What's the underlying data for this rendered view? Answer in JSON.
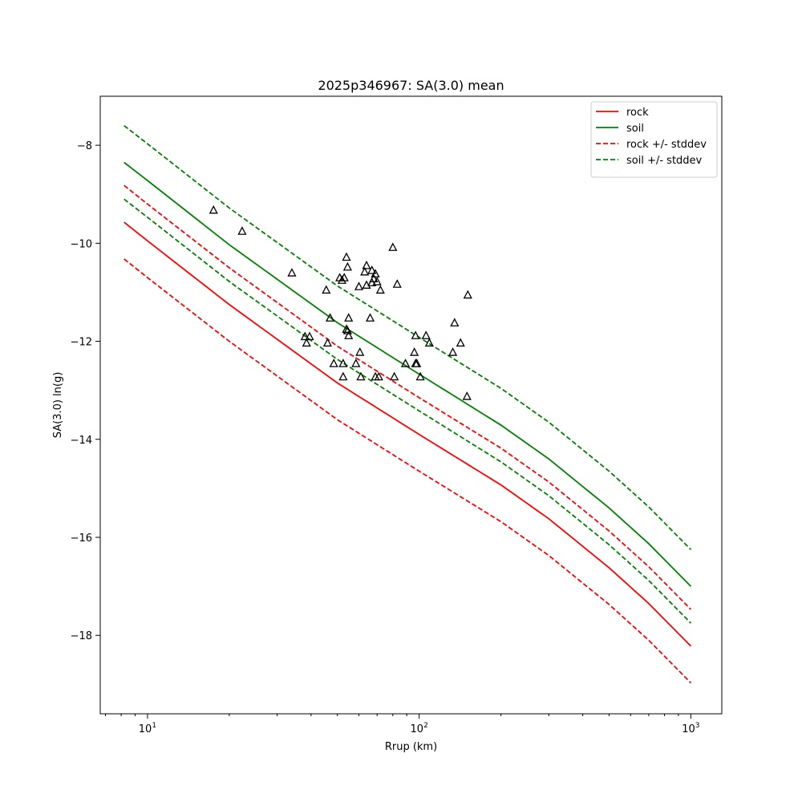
{
  "chart_data": {
    "type": "line",
    "title": "2025p346967: SA(3.0) mean",
    "xlabel": "Rrup (km)",
    "ylabel": "SA(3.0) ln(g)",
    "xscale": "log",
    "xlim": [
      6.7,
      1300
    ],
    "ylim": [
      -19.6,
      -7.0
    ],
    "yticks": [
      -8,
      -10,
      -12,
      -14,
      -16,
      -18
    ],
    "xticks": [
      {
        "value": 10,
        "base": "10",
        "exp": "1"
      },
      {
        "value": 100,
        "base": "10",
        "exp": "2"
      },
      {
        "value": 1000,
        "base": "10",
        "exp": "3"
      }
    ],
    "grid": false,
    "legend_position": "top-right",
    "series": [
      {
        "name": "rock",
        "color": "#ff0000",
        "style": "solid",
        "x": [
          8.2,
          10,
          20,
          50,
          100,
          200,
          300,
          500,
          700,
          1000
        ],
        "y": [
          -9.57,
          -9.95,
          -11.25,
          -12.85,
          -13.9,
          -14.93,
          -15.62,
          -16.62,
          -17.35,
          -18.22
        ]
      },
      {
        "name": "soil",
        "color": "#008000",
        "style": "solid",
        "x": [
          8.2,
          10,
          20,
          50,
          100,
          200,
          300,
          500,
          700,
          1000
        ],
        "y": [
          -8.35,
          -8.72,
          -10.03,
          -11.62,
          -12.67,
          -13.71,
          -14.4,
          -15.4,
          -16.13,
          -17.0
        ]
      },
      {
        "name": "rock +/- stddev",
        "color": "#ff0000",
        "style": "dashed",
        "x": [
          8.2,
          10,
          20,
          50,
          100,
          200,
          300,
          500,
          700,
          1000
        ],
        "y": [
          -8.82,
          -9.2,
          -10.5,
          -12.1,
          -13.15,
          -14.18,
          -14.87,
          -15.87,
          -16.6,
          -17.47
        ]
      },
      {
        "name": "",
        "color": "#ff0000",
        "style": "dashed",
        "x": [
          8.2,
          10,
          20,
          50,
          100,
          200,
          300,
          500,
          700,
          1000
        ],
        "y": [
          -10.32,
          -10.7,
          -12.0,
          -13.6,
          -14.65,
          -15.68,
          -16.37,
          -17.37,
          -18.1,
          -18.97
        ]
      },
      {
        "name": "soil +/- stddev",
        "color": "#008000",
        "style": "dashed",
        "x": [
          8.2,
          10,
          20,
          50,
          100,
          200,
          300,
          500,
          700,
          1000
        ],
        "y": [
          -7.6,
          -7.97,
          -9.28,
          -10.87,
          -11.92,
          -12.96,
          -13.65,
          -14.65,
          -15.38,
          -16.25
        ]
      },
      {
        "name": "",
        "color": "#008000",
        "style": "dashed",
        "x": [
          8.2,
          10,
          20,
          50,
          100,
          200,
          300,
          500,
          700,
          1000
        ],
        "y": [
          -9.1,
          -9.47,
          -10.78,
          -12.37,
          -13.42,
          -14.46,
          -15.15,
          -16.15,
          -16.88,
          -17.75
        ]
      }
    ],
    "observations": {
      "marker": "triangle",
      "color": "#000000",
      "points": [
        [
          17.5,
          -9.32
        ],
        [
          22.3,
          -9.75
        ],
        [
          34,
          -10.6
        ],
        [
          38,
          -11.9
        ],
        [
          38.5,
          -12.03
        ],
        [
          39.5,
          -11.9
        ],
        [
          45.5,
          -10.95
        ],
        [
          46,
          -12.03
        ],
        [
          47,
          -11.52
        ],
        [
          48.5,
          -12.45
        ],
        [
          51,
          -10.7
        ],
        [
          52,
          -10.75
        ],
        [
          52.5,
          -12.45
        ],
        [
          52.5,
          -12.72
        ],
        [
          53,
          -10.7
        ],
        [
          54,
          -10.28
        ],
        [
          54,
          -11.75
        ],
        [
          54.5,
          -10.48
        ],
        [
          54.5,
          -11.78
        ],
        [
          55,
          -11.52
        ],
        [
          55,
          -11.88
        ],
        [
          58.5,
          -12.45
        ],
        [
          60,
          -10.88
        ],
        [
          60.5,
          -12.22
        ],
        [
          61,
          -12.72
        ],
        [
          63,
          -10.58
        ],
        [
          64,
          -10.45
        ],
        [
          64,
          -10.85
        ],
        [
          66,
          -11.52
        ],
        [
          67,
          -10.55
        ],
        [
          67,
          -10.8
        ],
        [
          68,
          -10.72
        ],
        [
          69,
          -10.62
        ],
        [
          69,
          -12.72
        ],
        [
          70,
          -10.78
        ],
        [
          71,
          -12.72
        ],
        [
          72,
          -10.95
        ],
        [
          80,
          -10.08
        ],
        [
          81,
          -12.72
        ],
        [
          83,
          -10.83
        ],
        [
          89,
          -12.45
        ],
        [
          96,
          -12.22
        ],
        [
          97,
          -11.88
        ],
        [
          97,
          -12.45
        ],
        [
          98,
          -12.45
        ],
        [
          101,
          -12.72
        ],
        [
          106,
          -11.88
        ],
        [
          109,
          -12.03
        ],
        [
          133,
          -12.22
        ],
        [
          135,
          -11.62
        ],
        [
          142,
          -12.03
        ],
        [
          150,
          -13.12
        ],
        [
          151,
          -11.05
        ]
      ]
    }
  }
}
